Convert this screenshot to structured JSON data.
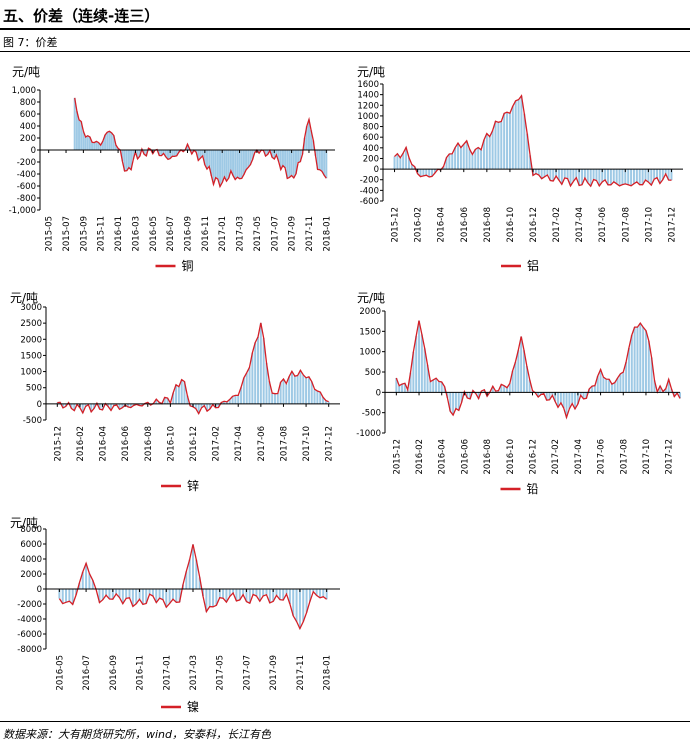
{
  "page": {
    "title": "五、价差（连续-连三）",
    "figure_label": "图 7：价差",
    "source": "数据来源：大有期货研究所，wind，安泰科，长江有色"
  },
  "colors": {
    "line": "#d42027",
    "bar": "#9ec9e5"
  },
  "chart_data": [
    {
      "type": "line",
      "unit": "元/吨",
      "legend": "铜",
      "x_ticks": [
        "2015-05",
        "2015-07",
        "2015-09",
        "2015-11",
        "2016-01",
        "2016-03",
        "2016-05",
        "2016-07",
        "2016-09",
        "2016-11",
        "2017-01",
        "2017-03",
        "2017-05",
        "2017-07",
        "2017-09",
        "2017-11",
        "2018-01"
      ],
      "y_ticks": [
        "1,000",
        "800",
        "600",
        "400",
        "200",
        "0",
        "-200",
        "-400",
        "-600",
        "-800",
        "-1,000"
      ],
      "ylim": [
        -1000,
        1000
      ],
      "series": [
        {
          "name": "铜",
          "x": [
            "2015-08",
            "2015-09",
            "2015-10",
            "2015-11",
            "2015-12",
            "2016-01",
            "2016-02",
            "2016-03",
            "2016-05",
            "2016-07",
            "2016-09",
            "2016-11",
            "2016-12",
            "2017-01",
            "2017-02",
            "2017-03",
            "2017-04",
            "2017-05",
            "2017-07",
            "2017-09",
            "2017-10",
            "2017-11",
            "2017-12",
            "2018-01"
          ],
          "values": [
            800,
            300,
            150,
            100,
            350,
            50,
            -400,
            -100,
            0,
            -150,
            50,
            -200,
            -500,
            -550,
            -400,
            -500,
            -300,
            0,
            -100,
            -500,
            -200,
            550,
            -300,
            -450
          ]
        }
      ]
    },
    {
      "type": "line",
      "unit": "元/吨",
      "legend": "铝",
      "x_ticks": [
        "2015-12",
        "2016-02",
        "2016-04",
        "2016-06",
        "2016-08",
        "2016-10",
        "2016-12",
        "2017-02",
        "2017-04",
        "2017-06",
        "2017-08",
        "2017-10",
        "2017-12"
      ],
      "y_ticks": [
        "1600",
        "1400",
        "1200",
        "1000",
        "800",
        "600",
        "400",
        "200",
        "0",
        "-200",
        "-400",
        "-600"
      ],
      "ylim": [
        -600,
        1600
      ],
      "series": [
        {
          "name": "铝",
          "x": [
            "2015-12",
            "2016-01",
            "2016-02",
            "2016-03",
            "2016-04",
            "2016-05",
            "2016-06",
            "2016-07",
            "2016-08",
            "2016-09",
            "2016-10",
            "2016-11",
            "2016-12",
            "2017-01",
            "2017-02",
            "2017-04",
            "2017-06",
            "2017-08",
            "2017-10",
            "2017-12"
          ],
          "values": [
            200,
            350,
            -100,
            -150,
            0,
            350,
            500,
            300,
            600,
            900,
            1100,
            1400,
            -100,
            -150,
            -200,
            -250,
            -250,
            -300,
            -250,
            -150
          ]
        }
      ]
    },
    {
      "type": "line",
      "unit": "元/吨",
      "legend": "锌",
      "x_ticks": [
        "2015-12",
        "2016-02",
        "2016-04",
        "2016-06",
        "2016-08",
        "2016-10",
        "2016-12",
        "2017-02",
        "2017-04",
        "2017-06",
        "2017-08",
        "2017-10",
        "2017-12"
      ],
      "y_ticks": [
        "3000",
        "2500",
        "2000",
        "1500",
        "1000",
        "500",
        "0",
        "-500"
      ],
      "ylim": [
        -500,
        3000
      ],
      "series": [
        {
          "name": "锌",
          "x": [
            "2015-12",
            "2016-02",
            "2016-04",
            "2016-06",
            "2016-08",
            "2016-10",
            "2016-11",
            "2016-12",
            "2017-02",
            "2017-04",
            "2017-05",
            "2017-06",
            "2017-07",
            "2017-08",
            "2017-09",
            "2017-10",
            "2017-11",
            "2017-12"
          ],
          "values": [
            0,
            -150,
            -100,
            -100,
            0,
            150,
            800,
            -200,
            -100,
            300,
            1200,
            2500,
            200,
            700,
            950,
            900,
            400,
            50
          ]
        }
      ]
    },
    {
      "type": "line",
      "unit": "元/吨",
      "legend": "铅",
      "x_ticks": [
        "2015-12",
        "2016-02",
        "2016-04",
        "2016-06",
        "2016-08",
        "2016-10",
        "2016-12",
        "2017-02",
        "2017-04",
        "2017-06",
        "2017-08",
        "2017-10",
        "2017-12"
      ],
      "y_ticks": [
        "2000",
        "1500",
        "1000",
        "500",
        "0",
        "-500",
        "-1000"
      ],
      "ylim": [
        -1000,
        2000
      ],
      "series": [
        {
          "name": "铅",
          "x": [
            "2015-12",
            "2016-01",
            "2016-02",
            "2016-03",
            "2016-04",
            "2016-05",
            "2016-06",
            "2016-08",
            "2016-10",
            "2016-11",
            "2016-12",
            "2017-01",
            "2017-02",
            "2017-03",
            "2017-05",
            "2017-06",
            "2017-07",
            "2017-08",
            "2017-09",
            "2017-10",
            "2017-11",
            "2017-12",
            "2018-01"
          ],
          "values": [
            300,
            100,
            1800,
            300,
            300,
            -600,
            -100,
            0,
            200,
            1350,
            0,
            -100,
            -200,
            -500,
            0,
            500,
            200,
            500,
            1650,
            1600,
            0,
            200,
            -200
          ]
        }
      ]
    },
    {
      "type": "line",
      "unit": "元/吨",
      "legend": "镍",
      "x_ticks": [
        "2016-05",
        "2016-07",
        "2016-09",
        "2016-11",
        "2017-01",
        "2017-03",
        "2017-05",
        "2017-07",
        "2017-09",
        "2017-11",
        "2018-01"
      ],
      "y_ticks": [
        "8000",
        "6000",
        "4000",
        "2000",
        "0",
        "-2000",
        "-4000",
        "-6000",
        "-8000"
      ],
      "ylim": [
        -8000,
        8000
      ],
      "series": [
        {
          "name": "镍",
          "x": [
            "2016-05",
            "2016-06",
            "2016-07",
            "2016-08",
            "2016-09",
            "2016-10",
            "2016-11",
            "2016-12",
            "2017-01",
            "2017-02",
            "2017-03",
            "2017-04",
            "2017-05",
            "2017-06",
            "2017-07",
            "2017-08",
            "2017-09",
            "2017-10",
            "2017-11",
            "2017-12",
            "2018-01"
          ],
          "values": [
            -1500,
            -2000,
            3500,
            -1500,
            -1000,
            -1500,
            -2000,
            -1000,
            -2000,
            -1500,
            6000,
            -3000,
            -1500,
            -1000,
            -1500,
            -1000,
            -1500,
            -1000,
            -5500,
            -500,
            -1500
          ]
        }
      ]
    }
  ]
}
